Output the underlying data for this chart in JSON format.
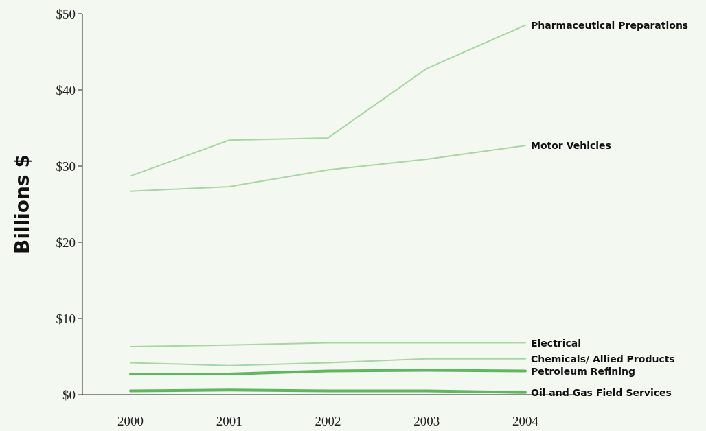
{
  "chart_data": {
    "type": "line",
    "ylabel": "Billions $",
    "categories": [
      "2000",
      "2001",
      "2002",
      "2003",
      "2004"
    ],
    "ylim": [
      0,
      50
    ],
    "yticks": [
      {
        "value": 0,
        "label": "$0"
      },
      {
        "value": 10,
        "label": "$10"
      },
      {
        "value": 20,
        "label": "$20"
      },
      {
        "value": 30,
        "label": "$30"
      },
      {
        "value": 40,
        "label": "$40"
      },
      {
        "value": 50,
        "label": "$50"
      }
    ],
    "grid": false,
    "legend": false,
    "marker": "none",
    "line_style": "solid",
    "series": [
      {
        "name": "Pharmaceutical Preparations",
        "color": "#a8d5a2",
        "values": [
          28.7,
          33.4,
          33.7,
          42.8,
          48.5
        ]
      },
      {
        "name": "Motor Vehicles",
        "color": "#a8d5a2",
        "values": [
          26.7,
          27.3,
          29.5,
          30.9,
          32.7
        ]
      },
      {
        "name": "Electrical",
        "color": "#a8d5a2",
        "values": [
          6.3,
          6.5,
          6.8,
          6.8,
          6.8
        ]
      },
      {
        "name": "Chemicals/ Allied Products",
        "color": "#a8d5a2",
        "values": [
          4.2,
          3.8,
          4.2,
          4.7,
          4.7
        ]
      },
      {
        "name": "Petroleum Refining",
        "color": "#5cb85c",
        "values": [
          2.7,
          2.7,
          3.1,
          3.2,
          3.1
        ]
      },
      {
        "name": "Oil and Gas Field Services",
        "color": "#5cb85c",
        "values": [
          0.5,
          0.6,
          0.5,
          0.5,
          0.3
        ]
      }
    ]
  }
}
